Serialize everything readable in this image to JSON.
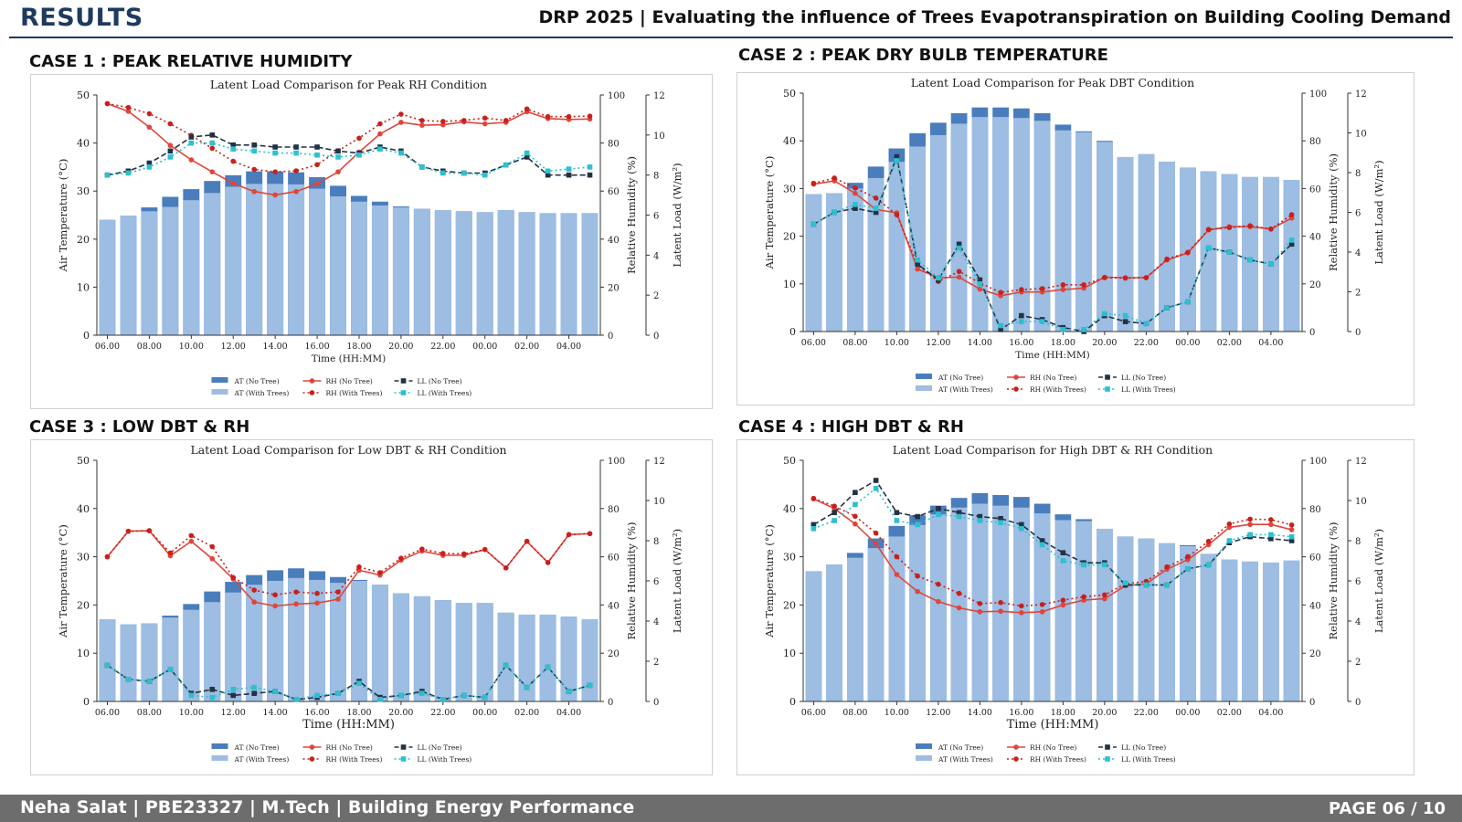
{
  "header": {
    "title": "RESULTS",
    "subtitle": "DRP 2025 | Evaluating the influence of Trees Evapotranspiration on Building Cooling Demand"
  },
  "footer": {
    "left": "Neha Salat | PBE23327 | M.Tech | Building Energy Performance",
    "right": "PAGE 06 / 10"
  },
  "colors": {
    "at_no_tree": "#4a7dbc",
    "at_with_trees": "#9dbde2",
    "rh_no_tree": "#e0453a",
    "rh_with_trees": "#c8201d",
    "ll_no_tree": "#223344",
    "ll_with_trees": "#2cc0d0"
  },
  "cases": [
    {
      "heading": "CASE 1 : PEAK RELATIVE HUMIDITY"
    },
    {
      "heading": "CASE 2  : PEAK DRY BULB TEMPERATURE"
    },
    {
      "heading": "CASE 3  : LOW DBT & RH"
    },
    {
      "heading": "CASE 4  : HIGH DBT & RH"
    }
  ],
  "chart_data": [
    {
      "type": "bar",
      "title": "Latent Load Comparison for Peak RH Condition",
      "xlabel": "Time (HH:MM)",
      "ylabel_left": "Air Temperature (°C)",
      "ylabel_rh": "Relative Humidity (%)",
      "ylabel_ll": "Latent Load (W/m²)",
      "ylim_temp": [
        0,
        50
      ],
      "yticks_temp": [
        "0",
        "10",
        "20",
        "30",
        "40",
        "50"
      ],
      "ylim_rh": [
        0,
        100
      ],
      "yticks_rh": [
        "0",
        "20",
        "40",
        "60",
        "80",
        "100"
      ],
      "ylim_ll": [
        0,
        12
      ],
      "yticks_ll": [
        "0",
        "2",
        "4",
        "6",
        "8",
        "10",
        "12"
      ],
      "xtick_labels": [
        "06.00",
        "08.00",
        "10.00",
        "12.00",
        "14.00",
        "16.00",
        "18.00",
        "20.00",
        "22.00",
        "00.00",
        "02.00",
        "04.00"
      ],
      "legend": [
        "AT (No Tree)",
        "AT (With Trees)",
        "RH (No Tree)",
        "RH (With Trees)",
        "LL (No Tree)",
        "LL (With Trees)"
      ],
      "series": [
        {
          "name": "AT (No Tree)",
          "values": [
            24,
            24.9,
            26.6,
            28.8,
            30.4,
            32.1,
            33.3,
            34.1,
            34.1,
            33.9,
            32.9,
            31.1,
            29.0,
            27.8,
            26.8,
            26.3,
            26.0,
            25.8,
            25.6,
            26.0,
            25.6,
            25.4,
            25.4,
            25.4
          ]
        },
        {
          "name": "AT (With Trees)",
          "values": [
            24,
            24.9,
            25.8,
            26.7,
            28.1,
            29.6,
            30.9,
            31.5,
            31.5,
            31.4,
            30.5,
            28.9,
            27.8,
            27.0,
            26.6,
            26.3,
            26.0,
            25.8,
            25.6,
            26.0,
            25.6,
            25.4,
            25.4,
            25.4
          ]
        },
        {
          "name": "RH (No Tree)",
          "values": [
            96.4,
            93.2,
            86.6,
            79.0,
            73.0,
            68.0,
            63.2,
            59.8,
            58.4,
            59.8,
            63.0,
            68.0,
            76.2,
            83.8,
            88.6,
            87.4,
            87.6,
            88.8,
            88.0,
            88.6,
            93.0,
            90.2,
            89.8,
            90.0
          ]
        },
        {
          "name": "RH (With Trees)",
          "values": [
            96.4,
            94.8,
            92.2,
            88.0,
            83.2,
            77.8,
            72.4,
            69.0,
            68.0,
            68.4,
            71.0,
            76.8,
            82.0,
            88.0,
            92.0,
            89.4,
            89.0,
            89.4,
            90.4,
            89.4,
            94.2,
            91.0,
            91.0,
            91.2
          ]
        },
        {
          "name": "LL (No Tree)",
          "values": [
            8.0,
            8.2,
            8.6,
            9.2,
            9.9,
            10.0,
            9.5,
            9.5,
            9.4,
            9.4,
            9.4,
            9.2,
            9.1,
            9.4,
            9.2,
            8.4,
            8.2,
            8.1,
            8.1,
            8.5,
            8.9,
            8.0,
            8.0,
            8.0
          ]
        },
        {
          "name": "LL (With Trees)",
          "values": [
            8.0,
            8.1,
            8.4,
            8.9,
            9.6,
            9.6,
            9.3,
            9.2,
            9.1,
            9.1,
            9.0,
            8.9,
            9.0,
            9.3,
            9.1,
            8.4,
            8.1,
            8.1,
            8.0,
            8.5,
            9.1,
            8.2,
            8.3,
            8.4
          ]
        }
      ]
    },
    {
      "type": "bar",
      "title": "Latent Load Comparison for Peak DBT Condition",
      "xlabel": "Time (HH:MM)",
      "ylabel_left": "Air Temperature (°C)",
      "ylabel_rh": "Relative Humidity (%)",
      "ylabel_ll": "Latent Load (W/m²)",
      "ylim_temp": [
        0,
        50
      ],
      "yticks_temp": [
        "0",
        "10",
        "20",
        "30",
        "40",
        "50"
      ],
      "ylim_rh": [
        0,
        100
      ],
      "yticks_rh": [
        "0",
        "20",
        "40",
        "60",
        "80",
        "100"
      ],
      "ylim_ll": [
        0,
        12
      ],
      "yticks_ll": [
        "0",
        "2",
        "4",
        "6",
        "8",
        "10",
        "12"
      ],
      "xtick_labels": [
        "06.00",
        "08.00",
        "10.00",
        "12.00",
        "14.00",
        "16.00",
        "18.00",
        "20.00",
        "22.00",
        "00.00",
        "02.00",
        "04.00"
      ],
      "legend": [
        "AT (No Tree)",
        "AT (With Trees)",
        "RH (No Tree)",
        "RH (With Trees)",
        "LL (No Tree)",
        "LL (With Trees)"
      ],
      "series": [
        {
          "name": "AT (No Tree)",
          "values": [
            28.8,
            29.0,
            31.2,
            34.6,
            38.4,
            41.6,
            43.8,
            45.8,
            47.0,
            47.0,
            46.8,
            45.8,
            43.4,
            42.0,
            40.0,
            36.6,
            37.2,
            35.6,
            34.4,
            33.6,
            33.0,
            32.4,
            32.4,
            31.8
          ]
        },
        {
          "name": "AT (With Trees)",
          "values": [
            28.8,
            29.0,
            30.0,
            32.2,
            35.6,
            38.8,
            41.2,
            43.6,
            45.0,
            45.0,
            44.8,
            44.2,
            42.2,
            41.8,
            39.8,
            36.6,
            37.2,
            35.6,
            34.4,
            33.6,
            33.0,
            32.4,
            32.4,
            31.8
          ]
        },
        {
          "name": "RH (No Tree)",
          "values": [
            61.8,
            63.2,
            58.0,
            51.2,
            49.8,
            26.2,
            22.6,
            22.8,
            17.8,
            15.0,
            16.6,
            16.6,
            17.6,
            18.2,
            22.8,
            22.6,
            22.6,
            30.0,
            33.0,
            42.6,
            44.0,
            44.0,
            43.0,
            47.6
          ]
        },
        {
          "name": "RH (With Trees)",
          "values": [
            62.2,
            64.4,
            60.2,
            56.0,
            49.0,
            28.0,
            21.0,
            25.2,
            20.4,
            16.4,
            17.6,
            18.0,
            19.6,
            19.6,
            22.6,
            22.4,
            22.6,
            30.4,
            33.2,
            42.8,
            43.6,
            44.4,
            43.0,
            49.0
          ]
        },
        {
          "name": "LL (No Tree)",
          "values": [
            5.4,
            6.0,
            6.2,
            6.0,
            8.8,
            3.4,
            2.6,
            4.4,
            2.6,
            0.1,
            0.8,
            0.6,
            0.2,
            0.0,
            0.8,
            0.5,
            0.4,
            1.2,
            1.5,
            4.2,
            4.0,
            3.6,
            3.4,
            4.4
          ]
        },
        {
          "name": "LL (With Trees)",
          "values": [
            5.4,
            6.0,
            6.4,
            6.2,
            8.6,
            3.6,
            2.7,
            4.2,
            2.4,
            0.3,
            0.5,
            0.5,
            0.1,
            0.1,
            0.9,
            0.8,
            0.4,
            1.2,
            1.5,
            4.2,
            4.0,
            3.6,
            3.4,
            4.6
          ]
        }
      ]
    },
    {
      "type": "bar",
      "title": "Latent Load Comparison for Low DBT & RH Condition",
      "xlabel": "Time (HH:MM)",
      "ylabel_left": "Air Temperature (°C)",
      "ylabel_rh": "Relative Humidity (%)",
      "ylabel_ll": "Latent Load (W/m²)",
      "ylim_temp": [
        0,
        50
      ],
      "yticks_temp": [
        "0",
        "10",
        "20",
        "30",
        "40",
        "50"
      ],
      "ylim_rh": [
        0,
        100
      ],
      "yticks_rh": [
        "0",
        "20",
        "40",
        "60",
        "80",
        "100"
      ],
      "ylim_ll": [
        0,
        12
      ],
      "yticks_ll": [
        "0",
        "2",
        "4",
        "6",
        "8",
        "10",
        "12"
      ],
      "xtick_labels": [
        "06.00",
        "08.00",
        "10.00",
        "12.00",
        "14.00",
        "16.00",
        "18.00",
        "20.00",
        "22.00",
        "00.00",
        "02.00",
        "04.00"
      ],
      "legend": [
        "AT (No Tree)",
        "AT (With Trees)",
        "RH (No Tree)",
        "RH (With Trees)",
        "LL (No Tree)",
        "LL (With Trees)"
      ],
      "series": [
        {
          "name": "AT (No Tree)",
          "values": [
            17.0,
            16.0,
            16.2,
            17.8,
            20.2,
            22.8,
            24.8,
            26.2,
            27.2,
            27.6,
            27.0,
            25.8,
            25.2,
            24.2,
            22.4,
            21.8,
            21.0,
            20.4,
            20.4,
            18.4,
            18.0,
            18.0,
            17.6,
            17.0
          ]
        },
        {
          "name": "AT (With Trees)",
          "values": [
            17.0,
            16.0,
            16.2,
            17.4,
            19.0,
            20.6,
            22.6,
            24.2,
            25.0,
            25.6,
            25.2,
            24.6,
            25.0,
            24.2,
            22.4,
            21.8,
            21.0,
            20.4,
            20.4,
            18.4,
            18.0,
            18.0,
            17.6,
            17.0
          ]
        },
        {
          "name": "RH (No Tree)",
          "values": [
            60.0,
            70.6,
            70.8,
            60.4,
            66.4,
            59.2,
            50.8,
            41.2,
            39.6,
            40.4,
            40.8,
            42.4,
            54.4,
            52.4,
            58.6,
            62.4,
            60.6,
            60.6,
            63.0,
            55.4,
            66.4,
            57.6,
            69.2,
            69.6
          ]
        },
        {
          "name": "RH (With Trees)",
          "values": [
            60.0,
            70.6,
            70.8,
            61.6,
            68.8,
            64.2,
            51.4,
            46.2,
            44.2,
            45.4,
            44.8,
            45.4,
            55.8,
            53.4,
            59.4,
            63.2,
            61.4,
            61.2,
            63.0,
            55.4,
            66.4,
            57.6,
            69.2,
            69.6
          ]
        },
        {
          "name": "LL (No Tree)",
          "values": [
            1.8,
            1.1,
            1.0,
            1.6,
            0.4,
            0.6,
            0.3,
            0.4,
            0.5,
            0.1,
            0.2,
            0.4,
            1.0,
            0.2,
            0.3,
            0.5,
            0.1,
            0.3,
            0.2,
            1.8,
            0.7,
            1.7,
            0.5,
            0.8
          ]
        },
        {
          "name": "LL (With Trees)",
          "values": [
            1.8,
            1.1,
            1.0,
            1.6,
            0.3,
            0.2,
            0.6,
            0.7,
            0.5,
            0.1,
            0.3,
            0.4,
            0.9,
            0.1,
            0.3,
            0.4,
            0.1,
            0.3,
            0.2,
            1.8,
            0.7,
            1.7,
            0.5,
            0.8
          ]
        }
      ]
    },
    {
      "type": "bar",
      "title": "Latent Load Comparison for High DBT & RH Condition",
      "xlabel": "Time (HH:MM)",
      "ylabel_left": "Air Temperature (°C)",
      "ylabel_rh": "Relative Humidity (%)",
      "ylabel_ll": "Latent Load (W/m²)",
      "ylim_temp": [
        0,
        50
      ],
      "yticks_temp": [
        "0",
        "10",
        "20",
        "30",
        "40",
        "50"
      ],
      "ylim_rh": [
        0,
        100
      ],
      "yticks_rh": [
        "0",
        "20",
        "40",
        "60",
        "80",
        "100"
      ],
      "ylim_ll": [
        0,
        12
      ],
      "yticks_ll": [
        "0",
        "2",
        "4",
        "6",
        "8",
        "10",
        "12"
      ],
      "xtick_labels": [
        "06.00",
        "08.00",
        "10.00",
        "12.00",
        "14.00",
        "16.00",
        "18.00",
        "20.00",
        "22.00",
        "00.00",
        "02.00",
        "04.00"
      ],
      "legend": [
        "AT (No Tree)",
        "AT (With Trees)",
        "RH (No Tree)",
        "RH (With Trees)",
        "LL (No Tree)",
        "LL (With Trees)"
      ],
      "series": [
        {
          "name": "AT (No Tree)",
          "values": [
            27.0,
            28.4,
            30.8,
            33.8,
            36.4,
            38.6,
            40.6,
            42.2,
            43.2,
            42.8,
            42.4,
            41.0,
            38.8,
            37.8,
            35.8,
            34.2,
            33.8,
            32.8,
            32.4,
            30.6,
            29.4,
            29.0,
            28.8,
            29.2
          ]
        },
        {
          "name": "AT (With Trees)",
          "values": [
            27.0,
            28.4,
            29.8,
            31.8,
            34.2,
            36.6,
            38.8,
            40.2,
            41.0,
            40.6,
            40.2,
            39.0,
            37.6,
            37.4,
            35.8,
            34.2,
            33.8,
            32.8,
            32.2,
            30.6,
            29.4,
            29.0,
            28.8,
            29.2
          ]
        },
        {
          "name": "RH (No Tree)",
          "values": [
            84.0,
            80.0,
            73.6,
            65.4,
            52.6,
            45.6,
            41.4,
            38.8,
            37.2,
            37.4,
            36.8,
            37.2,
            40.0,
            42.0,
            42.6,
            48.0,
            48.8,
            54.8,
            58.8,
            65.0,
            72.2,
            73.4,
            73.4,
            71.2
          ]
        },
        {
          "name": "RH (With Trees)",
          "values": [
            84.2,
            81.0,
            76.8,
            69.8,
            60.0,
            52.0,
            48.6,
            44.8,
            40.6,
            41.0,
            39.6,
            40.2,
            42.0,
            43.4,
            44.2,
            48.8,
            49.8,
            55.8,
            60.0,
            66.4,
            73.6,
            75.6,
            75.4,
            73.2
          ]
        },
        {
          "name": "LL (No Tree)",
          "values": [
            8.8,
            9.4,
            10.4,
            11.0,
            9.4,
            9.2,
            9.6,
            9.4,
            9.2,
            9.1,
            8.8,
            8.0,
            7.4,
            6.9,
            6.9,
            5.8,
            5.8,
            5.8,
            6.6,
            6.8,
            7.9,
            8.2,
            8.1,
            8.0
          ]
        },
        {
          "name": "LL (With Trees)",
          "values": [
            8.6,
            9.0,
            9.8,
            10.6,
            9.0,
            8.8,
            9.3,
            9.2,
            9.0,
            8.9,
            8.6,
            7.8,
            7.0,
            6.8,
            6.8,
            5.9,
            5.8,
            5.8,
            6.6,
            6.8,
            8.0,
            8.3,
            8.3,
            8.2
          ]
        }
      ]
    }
  ]
}
